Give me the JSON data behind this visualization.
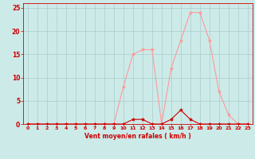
{
  "x": [
    0,
    1,
    2,
    3,
    4,
    5,
    6,
    7,
    8,
    9,
    10,
    11,
    12,
    13,
    14,
    15,
    16,
    17,
    18,
    19,
    20,
    21,
    22,
    23
  ],
  "rafales": [
    0,
    0,
    0,
    0,
    0,
    0,
    0,
    0,
    0,
    0,
    8,
    15,
    16,
    16,
    0,
    12,
    18,
    24,
    24,
    18,
    7,
    2,
    0,
    0
  ],
  "moyen": [
    0,
    0,
    0,
    0,
    0,
    0,
    0,
    0,
    0,
    0,
    0,
    1,
    1,
    0,
    0,
    1,
    3,
    1,
    0,
    0,
    0,
    0,
    0,
    0
  ],
  "bg_color": "#cceae8",
  "grid_color": "#aacccc",
  "line_color_rafales": "#ff9999",
  "line_color_moyen": "#cc0000",
  "xlabel": "Vent moyen/en rafales ( km/h )",
  "xlabel_color": "#cc0000",
  "tick_color": "#cc0000",
  "axis_color": "#cc0000",
  "ylim": [
    0,
    26
  ],
  "xlim": [
    -0.5,
    23.5
  ],
  "yticks": [
    0,
    5,
    10,
    15,
    20,
    25
  ],
  "xticks": [
    0,
    1,
    2,
    3,
    4,
    5,
    6,
    7,
    8,
    9,
    10,
    11,
    12,
    13,
    14,
    15,
    16,
    17,
    18,
    19,
    20,
    21,
    22,
    23
  ]
}
